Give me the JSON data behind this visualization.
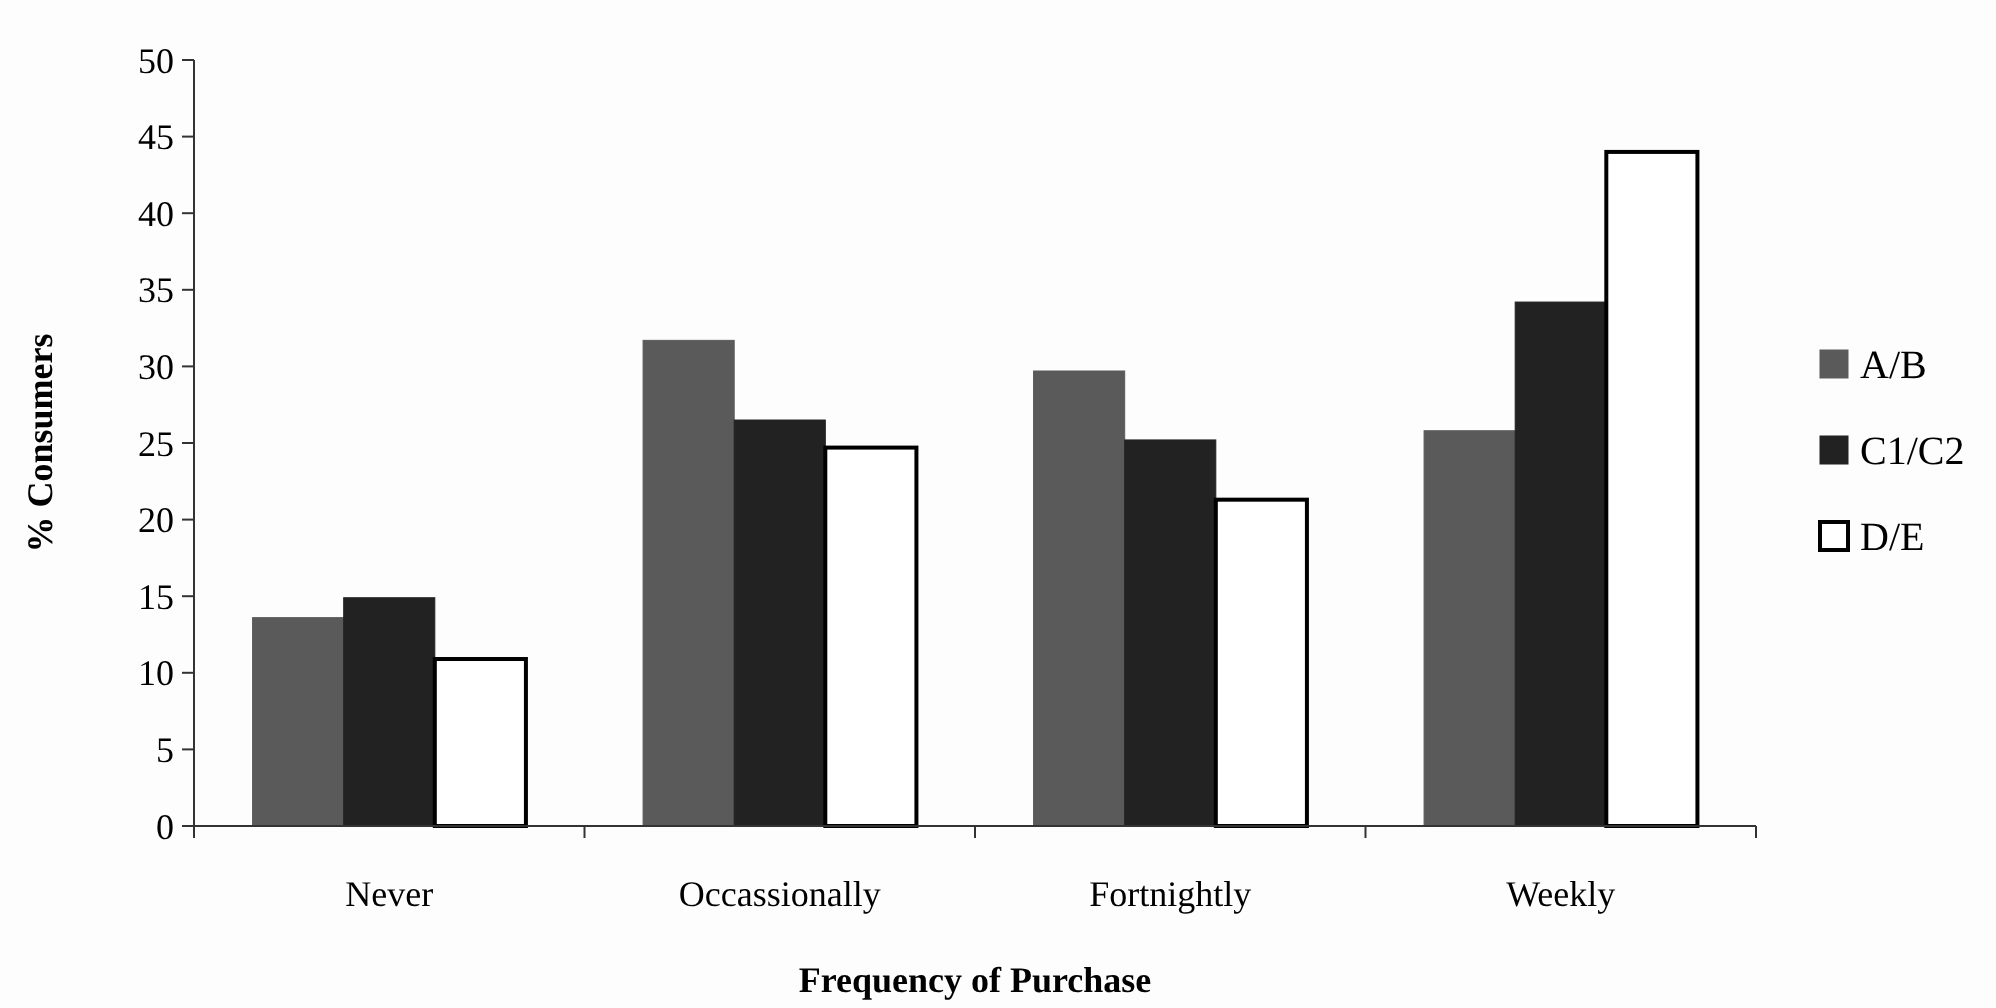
{
  "chart_data": {
    "type": "bar",
    "xlabel": "Frequency of Purchase",
    "ylabel": "% Consumers",
    "categories": [
      "Never",
      "Occassionally",
      "Fortnightly",
      "Weekly"
    ],
    "series": [
      {
        "name": "A/B",
        "color": "#5a5a5a",
        "values": [
          13.6,
          31.7,
          29.7,
          25.8
        ]
      },
      {
        "name": "C1/C2",
        "color": "#222222",
        "values": [
          14.9,
          26.5,
          25.2,
          34.2
        ]
      },
      {
        "name": "D/E",
        "color": "#ffffff",
        "values": [
          10.9,
          24.7,
          21.3,
          44.0
        ]
      }
    ],
    "ylim": [
      0,
      50
    ],
    "yticks": [
      0,
      5,
      10,
      15,
      20,
      25,
      30,
      35,
      40,
      45,
      50
    ],
    "grid": false,
    "legend": "right"
  }
}
